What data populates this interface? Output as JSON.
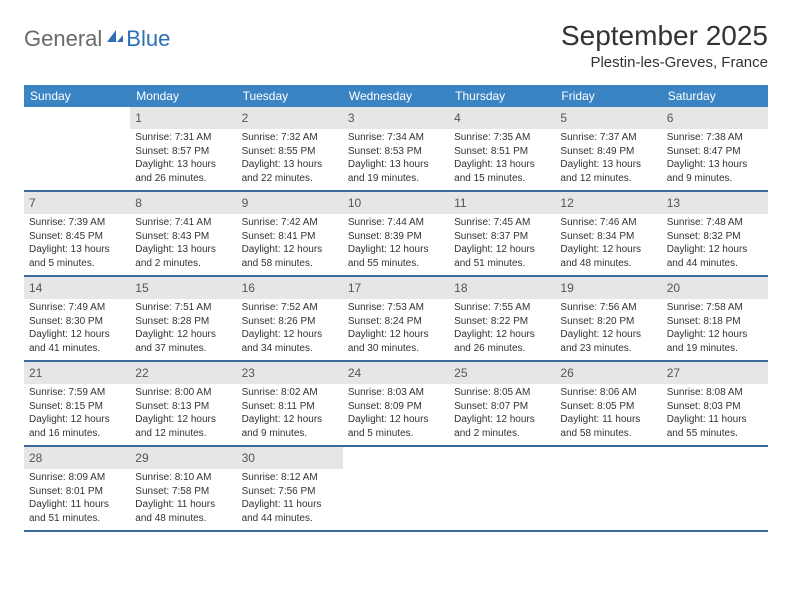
{
  "logo": {
    "part1": "General",
    "part2": "Blue"
  },
  "title": "September 2025",
  "location": "Plestin-les-Greves, France",
  "colors": {
    "header_bg": "#3b84c4",
    "header_text": "#ffffff",
    "daynum_bg": "#e6e6e6",
    "week_border": "#3b6a9a",
    "logo_gray": "#6a6a6a",
    "logo_blue": "#2d6fb5",
    "text": "#333333",
    "background": "#ffffff"
  },
  "day_names": [
    "Sunday",
    "Monday",
    "Tuesday",
    "Wednesday",
    "Thursday",
    "Friday",
    "Saturday"
  ],
  "weeks": [
    [
      {
        "day": "",
        "sunrise": "",
        "sunset": "",
        "daylight": ""
      },
      {
        "day": "1",
        "sunrise": "Sunrise: 7:31 AM",
        "sunset": "Sunset: 8:57 PM",
        "daylight": "Daylight: 13 hours and 26 minutes."
      },
      {
        "day": "2",
        "sunrise": "Sunrise: 7:32 AM",
        "sunset": "Sunset: 8:55 PM",
        "daylight": "Daylight: 13 hours and 22 minutes."
      },
      {
        "day": "3",
        "sunrise": "Sunrise: 7:34 AM",
        "sunset": "Sunset: 8:53 PM",
        "daylight": "Daylight: 13 hours and 19 minutes."
      },
      {
        "day": "4",
        "sunrise": "Sunrise: 7:35 AM",
        "sunset": "Sunset: 8:51 PM",
        "daylight": "Daylight: 13 hours and 15 minutes."
      },
      {
        "day": "5",
        "sunrise": "Sunrise: 7:37 AM",
        "sunset": "Sunset: 8:49 PM",
        "daylight": "Daylight: 13 hours and 12 minutes."
      },
      {
        "day": "6",
        "sunrise": "Sunrise: 7:38 AM",
        "sunset": "Sunset: 8:47 PM",
        "daylight": "Daylight: 13 hours and 9 minutes."
      }
    ],
    [
      {
        "day": "7",
        "sunrise": "Sunrise: 7:39 AM",
        "sunset": "Sunset: 8:45 PM",
        "daylight": "Daylight: 13 hours and 5 minutes."
      },
      {
        "day": "8",
        "sunrise": "Sunrise: 7:41 AM",
        "sunset": "Sunset: 8:43 PM",
        "daylight": "Daylight: 13 hours and 2 minutes."
      },
      {
        "day": "9",
        "sunrise": "Sunrise: 7:42 AM",
        "sunset": "Sunset: 8:41 PM",
        "daylight": "Daylight: 12 hours and 58 minutes."
      },
      {
        "day": "10",
        "sunrise": "Sunrise: 7:44 AM",
        "sunset": "Sunset: 8:39 PM",
        "daylight": "Daylight: 12 hours and 55 minutes."
      },
      {
        "day": "11",
        "sunrise": "Sunrise: 7:45 AM",
        "sunset": "Sunset: 8:37 PM",
        "daylight": "Daylight: 12 hours and 51 minutes."
      },
      {
        "day": "12",
        "sunrise": "Sunrise: 7:46 AM",
        "sunset": "Sunset: 8:34 PM",
        "daylight": "Daylight: 12 hours and 48 minutes."
      },
      {
        "day": "13",
        "sunrise": "Sunrise: 7:48 AM",
        "sunset": "Sunset: 8:32 PM",
        "daylight": "Daylight: 12 hours and 44 minutes."
      }
    ],
    [
      {
        "day": "14",
        "sunrise": "Sunrise: 7:49 AM",
        "sunset": "Sunset: 8:30 PM",
        "daylight": "Daylight: 12 hours and 41 minutes."
      },
      {
        "day": "15",
        "sunrise": "Sunrise: 7:51 AM",
        "sunset": "Sunset: 8:28 PM",
        "daylight": "Daylight: 12 hours and 37 minutes."
      },
      {
        "day": "16",
        "sunrise": "Sunrise: 7:52 AM",
        "sunset": "Sunset: 8:26 PM",
        "daylight": "Daylight: 12 hours and 34 minutes."
      },
      {
        "day": "17",
        "sunrise": "Sunrise: 7:53 AM",
        "sunset": "Sunset: 8:24 PM",
        "daylight": "Daylight: 12 hours and 30 minutes."
      },
      {
        "day": "18",
        "sunrise": "Sunrise: 7:55 AM",
        "sunset": "Sunset: 8:22 PM",
        "daylight": "Daylight: 12 hours and 26 minutes."
      },
      {
        "day": "19",
        "sunrise": "Sunrise: 7:56 AM",
        "sunset": "Sunset: 8:20 PM",
        "daylight": "Daylight: 12 hours and 23 minutes."
      },
      {
        "day": "20",
        "sunrise": "Sunrise: 7:58 AM",
        "sunset": "Sunset: 8:18 PM",
        "daylight": "Daylight: 12 hours and 19 minutes."
      }
    ],
    [
      {
        "day": "21",
        "sunrise": "Sunrise: 7:59 AM",
        "sunset": "Sunset: 8:15 PM",
        "daylight": "Daylight: 12 hours and 16 minutes."
      },
      {
        "day": "22",
        "sunrise": "Sunrise: 8:00 AM",
        "sunset": "Sunset: 8:13 PM",
        "daylight": "Daylight: 12 hours and 12 minutes."
      },
      {
        "day": "23",
        "sunrise": "Sunrise: 8:02 AM",
        "sunset": "Sunset: 8:11 PM",
        "daylight": "Daylight: 12 hours and 9 minutes."
      },
      {
        "day": "24",
        "sunrise": "Sunrise: 8:03 AM",
        "sunset": "Sunset: 8:09 PM",
        "daylight": "Daylight: 12 hours and 5 minutes."
      },
      {
        "day": "25",
        "sunrise": "Sunrise: 8:05 AM",
        "sunset": "Sunset: 8:07 PM",
        "daylight": "Daylight: 12 hours and 2 minutes."
      },
      {
        "day": "26",
        "sunrise": "Sunrise: 8:06 AM",
        "sunset": "Sunset: 8:05 PM",
        "daylight": "Daylight: 11 hours and 58 minutes."
      },
      {
        "day": "27",
        "sunrise": "Sunrise: 8:08 AM",
        "sunset": "Sunset: 8:03 PM",
        "daylight": "Daylight: 11 hours and 55 minutes."
      }
    ],
    [
      {
        "day": "28",
        "sunrise": "Sunrise: 8:09 AM",
        "sunset": "Sunset: 8:01 PM",
        "daylight": "Daylight: 11 hours and 51 minutes."
      },
      {
        "day": "29",
        "sunrise": "Sunrise: 8:10 AM",
        "sunset": "Sunset: 7:58 PM",
        "daylight": "Daylight: 11 hours and 48 minutes."
      },
      {
        "day": "30",
        "sunrise": "Sunrise: 8:12 AM",
        "sunset": "Sunset: 7:56 PM",
        "daylight": "Daylight: 11 hours and 44 minutes."
      },
      {
        "day": "",
        "sunrise": "",
        "sunset": "",
        "daylight": ""
      },
      {
        "day": "",
        "sunrise": "",
        "sunset": "",
        "daylight": ""
      },
      {
        "day": "",
        "sunrise": "",
        "sunset": "",
        "daylight": ""
      },
      {
        "day": "",
        "sunrise": "",
        "sunset": "",
        "daylight": ""
      }
    ]
  ]
}
